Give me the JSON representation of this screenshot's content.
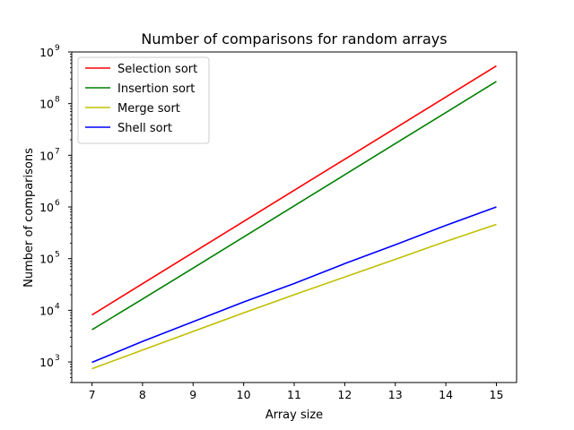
{
  "chart_data": {
    "type": "line",
    "title": "Number of comparisons for random arrays",
    "xlabel": "Array size",
    "ylabel": "Number of comparisons",
    "x": [
      7,
      8,
      9,
      10,
      11,
      12,
      13,
      14,
      15
    ],
    "xlim": [
      6.6,
      15.4
    ],
    "yscale": "log",
    "ylim": [
      400,
      1000000000
    ],
    "y_ticks": [
      {
        "base": "10",
        "exp": "3",
        "value": 1000
      },
      {
        "base": "10",
        "exp": "4",
        "value": 10000
      },
      {
        "base": "10",
        "exp": "5",
        "value": 100000
      },
      {
        "base": "10",
        "exp": "6",
        "value": 1000000
      },
      {
        "base": "10",
        "exp": "7",
        "value": 10000000
      },
      {
        "base": "10",
        "exp": "8",
        "value": 100000000
      },
      {
        "base": "10",
        "exp": "9",
        "value": 1000000000
      }
    ],
    "x_ticks": [
      "7",
      "8",
      "9",
      "10",
      "11",
      "12",
      "13",
      "14",
      "15"
    ],
    "grid": false,
    "legend_position": "top-left",
    "series": [
      {
        "name": "Selection sort",
        "color": "#ff0000",
        "values": [
          8128,
          32640,
          130816,
          523776,
          2096128,
          8386560,
          33550336,
          134209536,
          536854528
        ]
      },
      {
        "name": "Insertion sort",
        "color": "#008000",
        "values": [
          4200,
          16500,
          65500,
          262000,
          1050000,
          4200000,
          16800000,
          67100000,
          268000000
        ]
      },
      {
        "name": "Merge sort",
        "color": "#bfbf00",
        "values": [
          740,
          1700,
          3900,
          8900,
          20000,
          44000,
          97000,
          215000,
          460000
        ]
      },
      {
        "name": "Shell sort",
        "color": "#0000ff",
        "values": [
          980,
          2500,
          6000,
          14500,
          33000,
          80000,
          185000,
          440000,
          1000000
        ]
      }
    ]
  }
}
